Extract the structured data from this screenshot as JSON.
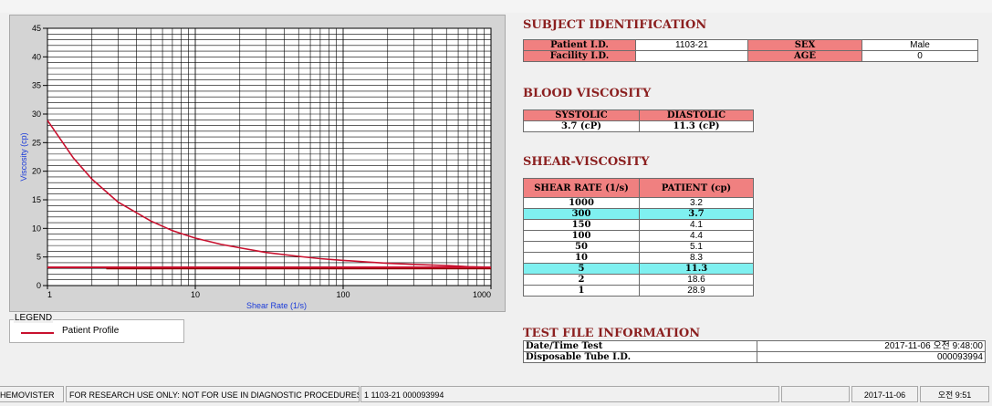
{
  "chart_data": {
    "type": "line",
    "xscale": "log",
    "xlim": [
      1,
      1000
    ],
    "ylim": [
      0,
      45
    ],
    "x_ticks": [
      "1",
      "10",
      "100",
      "1000"
    ],
    "y_ticks": [
      "0",
      "5",
      "10",
      "15",
      "20",
      "25",
      "30",
      "35",
      "40",
      "45"
    ],
    "xlabel": "Shear Rate (1/s)",
    "ylabel": "Viscosity (cp)",
    "grid": true,
    "series": [
      {
        "name": "Patient Profile",
        "color": "#c8102e",
        "x": [
          1,
          1.5,
          2,
          3,
          5,
          7,
          10,
          15,
          20,
          30,
          50,
          70,
          100,
          150,
          200,
          300,
          500,
          700,
          1000
        ],
        "y": [
          28.9,
          22.3,
          18.6,
          14.6,
          11.3,
          9.6,
          8.3,
          7.2,
          6.6,
          5.8,
          5.1,
          4.7,
          4.4,
          4.1,
          3.9,
          3.7,
          3.5,
          3.3,
          3.2
        ]
      }
    ],
    "reference_lines": [
      {
        "color": "#8b0000",
        "x_from": 2.5,
        "x_to": 1000,
        "y": 3.0
      },
      {
        "color": "#c8102e",
        "x_from": 1,
        "x_to": 1000,
        "y": 3.2
      }
    ]
  },
  "legend": {
    "title": "LEGEND",
    "items": [
      {
        "label": "Patient Profile",
        "color": "#c8102e"
      }
    ]
  },
  "subject": {
    "title": "SUBJECT IDENTIFICATION",
    "patient_id_label": "Patient I.D.",
    "patient_id_value": "1103-21",
    "sex_label": "SEX",
    "sex_value": "Male",
    "facility_id_label": "Facility I.D.",
    "facility_id_value": "",
    "age_label": "AGE",
    "age_value": "0"
  },
  "blood_viscosity": {
    "title": "BLOOD VISCOSITY",
    "systolic_label": "SYSTOLIC",
    "diastolic_label": "DIASTOLIC",
    "systolic_value": "3.7 (cP)",
    "diastolic_value": "11.3 (cP)"
  },
  "shear_viscosity": {
    "title": "SHEAR-VISCOSITY",
    "col_rate": "SHEAR RATE (1/s)",
    "col_patient": "PATIENT (cp)",
    "rows": [
      {
        "rate": "1000",
        "value": "3.2",
        "highlight": false
      },
      {
        "rate": "300",
        "value": "3.7",
        "highlight": true
      },
      {
        "rate": "150",
        "value": "4.1",
        "highlight": false
      },
      {
        "rate": "100",
        "value": "4.4",
        "highlight": false
      },
      {
        "rate": "50",
        "value": "5.1",
        "highlight": false
      },
      {
        "rate": "10",
        "value": "8.3",
        "highlight": false
      },
      {
        "rate": "5",
        "value": "11.3",
        "highlight": true
      },
      {
        "rate": "2",
        "value": "18.6",
        "highlight": false
      },
      {
        "rate": "1",
        "value": "28.9",
        "highlight": false
      }
    ]
  },
  "test_file": {
    "title": "TEST FILE INFORMATION",
    "datetime_label": "Date/Time Test",
    "datetime_value": "2017-11-06  오전 9:48:00",
    "tube_label": "Disposable Tube I.D.",
    "tube_value": "000093994"
  },
  "statusbar": {
    "app": "HEMOVISTER",
    "notice": "FOR RESEARCH USE ONLY: NOT FOR USE IN DIAGNOSTIC PROCEDURES",
    "file": "1  1103-21  000093994",
    "date": "2017-11-06",
    "time": "오전 9:51"
  }
}
